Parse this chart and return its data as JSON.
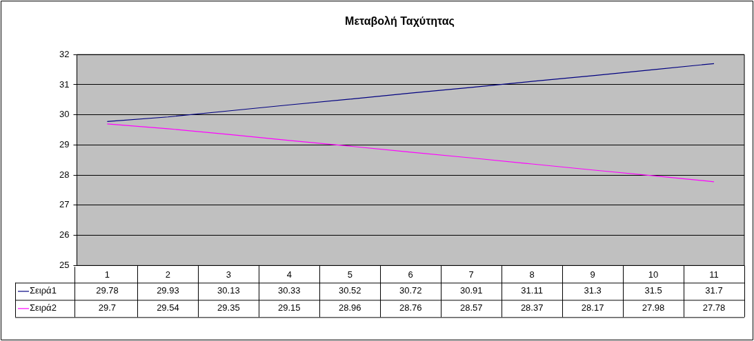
{
  "chart_data": {
    "type": "line",
    "title": "Μεταβολή Ταχύτητας",
    "categories": [
      "1",
      "2",
      "3",
      "4",
      "5",
      "6",
      "7",
      "8",
      "9",
      "10",
      "11"
    ],
    "series": [
      {
        "name": "Σειρά1",
        "color": "#000080",
        "values": [
          29.78,
          29.93,
          30.13,
          30.33,
          30.52,
          30.72,
          30.91,
          31.11,
          31.3,
          31.5,
          31.7
        ]
      },
      {
        "name": "Σειρά2",
        "color": "#ff00ff",
        "values": [
          29.7,
          29.54,
          29.35,
          29.15,
          28.96,
          28.76,
          28.57,
          28.37,
          28.17,
          27.98,
          27.78
        ]
      }
    ],
    "ylim": [
      25,
      32
    ],
    "yticks": [
      25,
      26,
      27,
      28,
      29,
      30,
      31,
      32
    ],
    "grid": "y",
    "legend": "bottom",
    "data_labels": true,
    "marker": "none",
    "line_style": "solid"
  }
}
